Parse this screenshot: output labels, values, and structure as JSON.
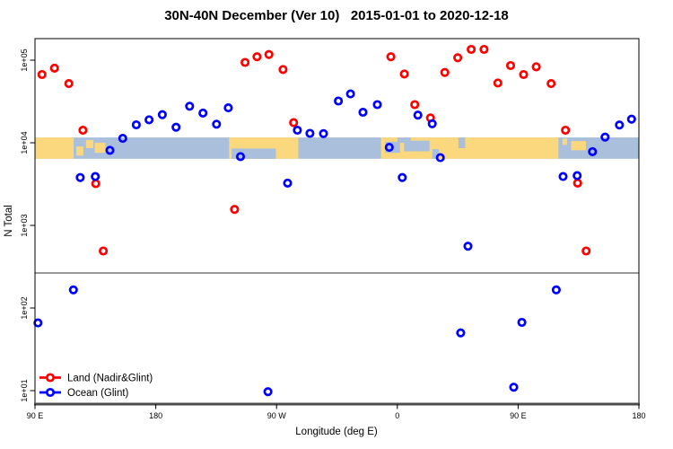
{
  "chart_data": {
    "type": "scatter",
    "title": "30N-40N December (Ver 10)   2015-01-01 to 2020-12-18",
    "xlabel": "Longitude (deg E)",
    "ylabel": "N Total",
    "y_scale": "log",
    "y_ticks": [
      {
        "label": "1e+05",
        "value": 100000
      },
      {
        "label": "1e+04",
        "value": 10000
      },
      {
        "label": "1e+03",
        "value": 1000
      },
      {
        "label": "1e+02",
        "value": 100
      },
      {
        "label": "1e+01",
        "value": 10
      }
    ],
    "x_ticks": [
      {
        "label": "90 E",
        "deg": 0
      },
      {
        "label": "180",
        "deg": 90
      },
      {
        "label": "90 W",
        "deg": 180
      },
      {
        "label": "0",
        "deg": 270
      },
      {
        "label": "90 E",
        "deg": 360
      },
      {
        "label": "180",
        "deg": 450
      }
    ],
    "x_axis_note": "x axis spans 450 degrees of longitude starting at 90E wrapping eastward to 180",
    "threshold_line_value": 265,
    "legend": {
      "entries": [
        {
          "id": "land",
          "label": "Land (Nadir&Glint)",
          "color": "#ff0000"
        },
        {
          "id": "ocean",
          "label": "Ocean (Glint)",
          "color": "#0000ff"
        }
      ]
    },
    "series": [
      {
        "name": "Land (Nadir&Glint)",
        "color": "#ff0000",
        "points": [
          [
            5.2,
            67000
          ],
          [
            14.5,
            80000
          ],
          [
            25.2,
            52000
          ],
          [
            35.7,
            14200
          ],
          [
            45.3,
            3200
          ],
          [
            50.9,
            490
          ],
          [
            148.7,
            1560
          ],
          [
            156.5,
            94000
          ],
          [
            165.4,
            110000
          ],
          [
            174.3,
            117000
          ],
          [
            184.8,
            77000
          ],
          [
            192.7,
            17500
          ],
          [
            265.2,
            110000
          ],
          [
            275.2,
            68000
          ],
          [
            283,
            29000
          ],
          [
            294.7,
            20000
          ],
          [
            305.4,
            71000
          ],
          [
            315,
            107000
          ],
          [
            325,
            135000
          ],
          [
            334.6,
            135000
          ],
          [
            344.9,
            53000
          ],
          [
            354.4,
            86000
          ],
          [
            364.1,
            67000
          ],
          [
            373.5,
            83000
          ],
          [
            384.6,
            52000
          ],
          [
            395.3,
            14200
          ],
          [
            404.3,
            3250
          ],
          [
            410.7,
            490
          ]
        ]
      },
      {
        "name": "Ocean (Glint)",
        "color": "#0000ff",
        "points": [
          [
            2.2,
            66
          ],
          [
            28.6,
            166
          ],
          [
            33.7,
            3800
          ],
          [
            44.9,
            3900
          ],
          [
            55.8,
            8100
          ],
          [
            65.4,
            11300
          ],
          [
            75.5,
            16500
          ],
          [
            85,
            19000
          ],
          [
            94.9,
            21900
          ],
          [
            105.1,
            15400
          ],
          [
            115.2,
            27700
          ],
          [
            125.2,
            22900
          ],
          [
            135.3,
            16800
          ],
          [
            144,
            26500
          ],
          [
            153.1,
            6800
          ],
          [
            173.6,
            9.7
          ],
          [
            188.2,
            3250
          ],
          [
            195.5,
            14200
          ],
          [
            204.9,
            13000
          ],
          [
            215,
            12900
          ],
          [
            226.1,
            32000
          ],
          [
            235.1,
            39000
          ],
          [
            244.4,
            23400
          ],
          [
            255.1,
            29000
          ],
          [
            264,
            8800
          ],
          [
            273.7,
            3800
          ],
          [
            285.3,
            21600
          ],
          [
            296,
            17000
          ],
          [
            302,
            6600
          ],
          [
            317.2,
            50
          ],
          [
            322.6,
            560
          ],
          [
            356.7,
            11
          ],
          [
            362.8,
            67
          ],
          [
            388.4,
            166
          ],
          [
            393.5,
            3900
          ],
          [
            404,
            4000
          ],
          [
            415.4,
            7800
          ],
          [
            424.8,
            11700
          ],
          [
            435.5,
            16400
          ],
          [
            444.5,
            19300
          ]
        ]
      }
    ],
    "map_band": {
      "description": "30N-40N world map strip drawn across plot, centered on 1e+04",
      "top_value": 11600,
      "bottom_value": 6400,
      "ocean_color": "#a9bfdc",
      "land_color": "#fbd87e",
      "land_segments": [
        {
          "d0": 0,
          "d1": 28.8,
          "f0": 0,
          "f1": 1
        },
        {
          "d0": 30.8,
          "d1": 36,
          "f0": 0.42,
          "f1": 0.85
        },
        {
          "d0": 38,
          "d1": 43.5,
          "f0": 0.12,
          "f1": 0.5
        },
        {
          "d0": 44.5,
          "d1": 52.5,
          "f0": 0.25,
          "f1": 0.72
        },
        {
          "d0": 144.6,
          "d1": 196.2,
          "f0": 0,
          "f1": 1
        },
        {
          "d0": 257.8,
          "d1": 390,
          "f0": 0,
          "f1": 1
        },
        {
          "d0": 393,
          "d1": 396.5,
          "f0": 0.05,
          "f1": 0.35
        },
        {
          "d0": 399.5,
          "d1": 410.5,
          "f0": 0.17,
          "f1": 0.6
        }
      ],
      "ocean_patches": [
        {
          "d0": 146.5,
          "d1": 179.5,
          "f0": 0.52,
          "f1": 1
        },
        {
          "d0": 261,
          "d1": 272,
          "f0": 0.2,
          "f1": 0.72
        },
        {
          "d0": 270,
          "d1": 280,
          "f0": 0,
          "f1": 0.25
        },
        {
          "d0": 275,
          "d1": 294,
          "f0": 0.15,
          "f1": 0.65
        },
        {
          "d0": 296,
          "d1": 301,
          "f0": 0.55,
          "f1": 1
        },
        {
          "d0": 315.5,
          "d1": 320.5,
          "f0": 0,
          "f1": 0.5
        }
      ]
    }
  }
}
